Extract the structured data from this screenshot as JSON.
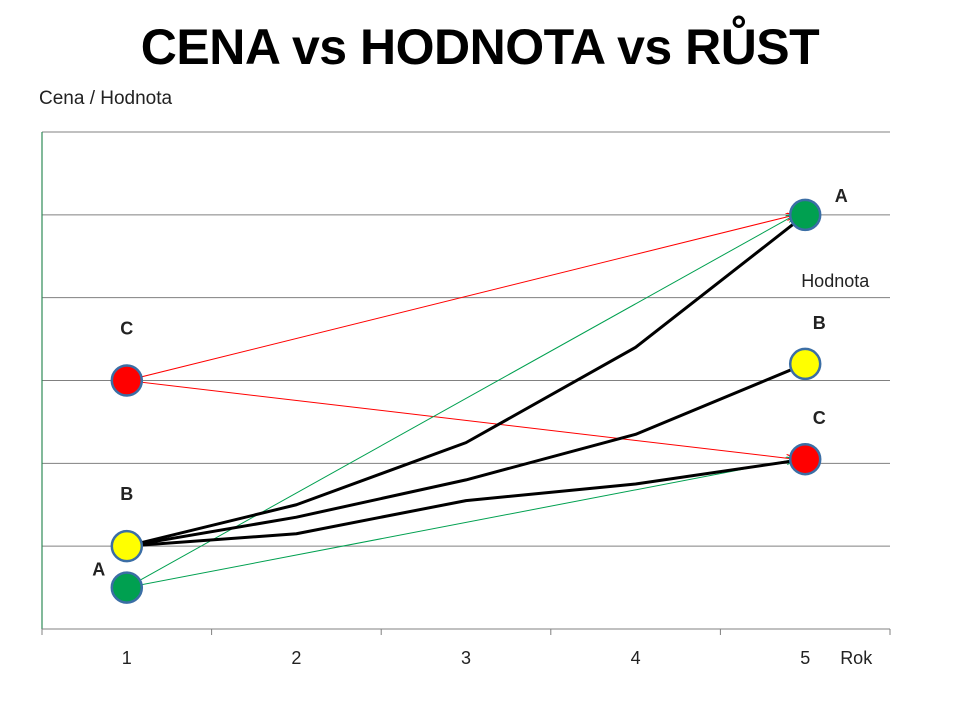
{
  "chart_data": {
    "type": "line",
    "title": "CENA vs HODNOTA vs RŮST",
    "ylabel": "Cena / Hodnota",
    "xlabel": "Rok",
    "categories": [
      "1",
      "2",
      "3",
      "4",
      "5"
    ],
    "xlim": [
      0.5,
      5.5
    ],
    "ylim": [
      0,
      6
    ],
    "grid": true,
    "series": [
      {
        "values": [
          1.0,
          1.15,
          1.55,
          1.75,
          2.05
        ],
        "color": "#000000"
      },
      {
        "values": [
          1.0,
          1.35,
          1.8,
          2.35,
          3.2
        ],
        "color": "#000000"
      },
      {
        "values": [
          1.0,
          1.5,
          2.25,
          3.4,
          5.0
        ],
        "color": "#000000"
      }
    ],
    "arrows": [
      {
        "from": [
          1,
          3.0
        ],
        "to": [
          5,
          5.0
        ],
        "color": "#ff0000"
      },
      {
        "from": [
          1,
          3.0
        ],
        "to": [
          5,
          2.05
        ],
        "color": "#ff0000"
      },
      {
        "from": [
          1,
          0.5
        ],
        "to": [
          5,
          5.0
        ],
        "color": "#00a050"
      },
      {
        "from": [
          1,
          0.5
        ],
        "to": [
          5,
          2.05
        ],
        "color": "#00a050"
      }
    ],
    "points": [
      {
        "label": "C",
        "x": 1,
        "y": 3.0,
        "color": "#ff0000"
      },
      {
        "label": "B",
        "x": 1,
        "y": 1.0,
        "color": "#ffff00"
      },
      {
        "label": "A",
        "x": 1,
        "y": 0.5,
        "color": "#00a050"
      },
      {
        "label": "A",
        "x": 5,
        "y": 5.0,
        "color": "#00a050"
      },
      {
        "label": "B",
        "x": 5,
        "y": 3.2,
        "color": "#ffff00"
      },
      {
        "label": "C",
        "x": 5,
        "y": 2.05,
        "color": "#ff0000"
      }
    ],
    "annotations": [
      {
        "text": "Hodnota",
        "x": 5,
        "y": 4.2
      }
    ]
  }
}
